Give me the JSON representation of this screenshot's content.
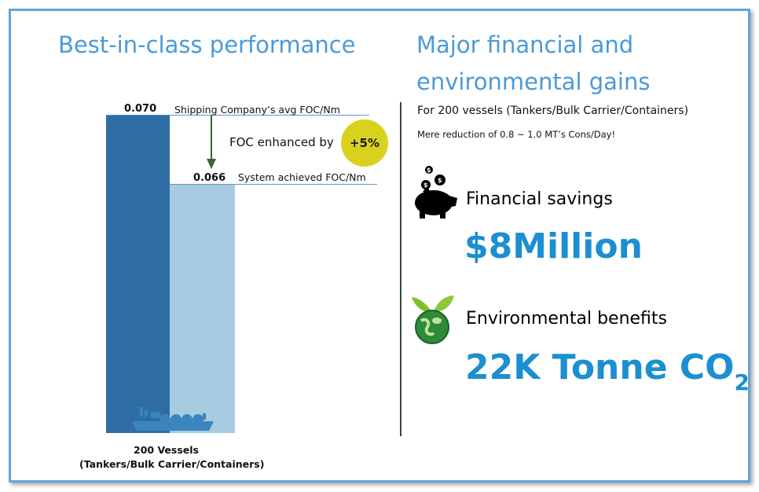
{
  "left": {
    "title": "Best-in-class performance",
    "avg_value": "0.070",
    "avg_label": "Shipping Company’s avg FOC/Nm",
    "achieved_value": "0.066",
    "achieved_label": "System achieved FOC/Nm",
    "enhanced_label": "FOC enhanced by",
    "enhanced_badge": "+5%",
    "footer_line1": "200 Vessels",
    "footer_line2": "(Tankers/Bulk Carrier/Containers)"
  },
  "right": {
    "title_line1": "Major financial and",
    "title_line2": "environmental gains",
    "subtitle": "For 200 vessels (Tankers/Bulk Carrier/Containers)",
    "note": "Mere reduction of 0.8 ~ 1.0 MT’s Cons/Day!",
    "financial_label": "Financial savings",
    "financial_value": "$8Million",
    "env_label": "Environmental benefits",
    "env_value": "22K Tonne CO",
    "env_sub": "2"
  },
  "chart_data": {
    "type": "bar",
    "categories": [
      "Shipping Company’s avg FOC/Nm",
      "System achieved FOC/Nm"
    ],
    "values": [
      0.07,
      0.066
    ]
  },
  "colors": {
    "title_blue": "#4a9ad8",
    "bar_dark": "#2f6ea5",
    "bar_light": "#a7cbe1",
    "badge_yellow": "#d8d21e",
    "arrow_green": "#2f6b32",
    "value_blue": "#1b8fd0"
  },
  "icons": [
    "piggy-bank-icon",
    "globe-leaf-icon",
    "ship-icon"
  ]
}
